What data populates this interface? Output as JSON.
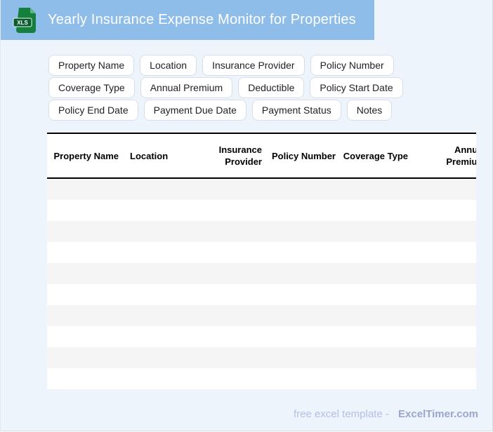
{
  "header": {
    "title": "Yearly Insurance Expense Monitor for Properties",
    "file_badge": "XLS"
  },
  "chips": [
    "Property Name",
    "Location",
    "Insurance Provider",
    "Policy Number",
    "Coverage Type",
    "Annual Premium",
    "Deductible",
    "Policy Start Date",
    "Policy End Date",
    "Payment Due Date",
    "Payment Status",
    "Notes"
  ],
  "table": {
    "columns": [
      "Property Name",
      "Location",
      "Insurance Provider",
      "Policy Number",
      "Coverage Type",
      "Annual Premium"
    ],
    "row_count": 10,
    "column_count": 6
  },
  "footer": {
    "prefix": "free excel template -",
    "brand": "ExcelTimer.com"
  },
  "colors": {
    "header_bg": "#8fbde9",
    "page_bg": "#eef4fb",
    "icon_green": "#15803d",
    "icon_band_green": "#0b5c2e",
    "row_alt": "#f5f5f5",
    "footer_text": "#b4bfe9",
    "footer_brand": "#9aa5d0"
  }
}
